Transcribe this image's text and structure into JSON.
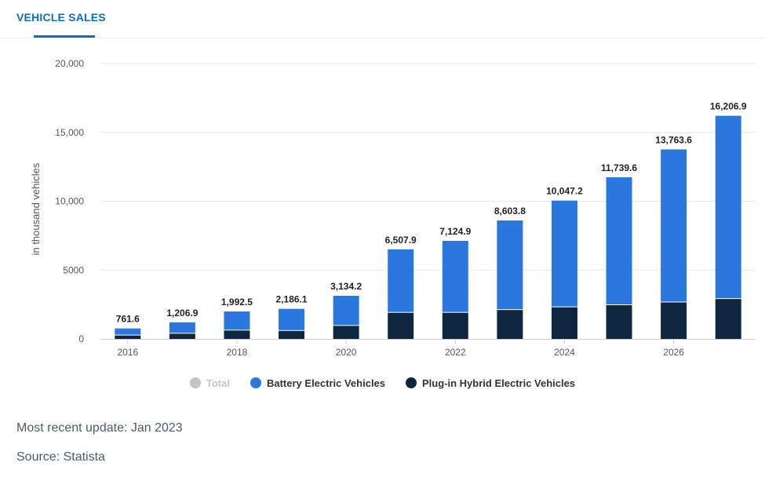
{
  "header": {
    "tab_label": "VEHICLE SALES"
  },
  "colors": {
    "total": "#c4c4c4",
    "bev": "#2a78de",
    "phev": "#0f2640",
    "accent": "#0f6dc0"
  },
  "chart_data": {
    "type": "bar",
    "stacked": true,
    "categories": [
      "2016",
      "2017",
      "2018",
      "2019",
      "2020",
      "2021",
      "2022",
      "2023",
      "2024",
      "2025",
      "2026",
      "2027"
    ],
    "x_tick_labels": [
      "2016",
      "",
      "2018",
      "",
      "2020",
      "",
      "2022",
      "",
      "2024",
      "",
      "2026",
      ""
    ],
    "series": [
      {
        "name": "Total",
        "visible": false,
        "values": [
          761.6,
          1206.9,
          1992.5,
          2186.1,
          3134.2,
          6507.9,
          7124.9,
          8603.8,
          10047.2,
          11739.6,
          13763.6,
          16206.9
        ]
      },
      {
        "name": "Battery Electric Vehicles",
        "visible": true,
        "values": [
          511.6,
          826.9,
          1382.5,
          1606.1,
          2184.2,
          4607.9,
          5224.9,
          6503.8,
          7747.2,
          9289.6,
          11113.6,
          13306.9
        ]
      },
      {
        "name": "Plug-in Hybrid Electric Vehicles",
        "visible": true,
        "values": [
          250,
          380,
          610,
          580,
          950,
          1900,
          1900,
          2100,
          2300,
          2450,
          2650,
          2900
        ]
      }
    ],
    "data_labels": [
      "761.6",
      "1,206.9",
      "1,992.5",
      "2,186.1",
      "3,134.2",
      "6,507.9",
      "7,124.9",
      "8,603.8",
      "10,047.2",
      "11,739.6",
      "13,763.6",
      "16,206.9"
    ],
    "ylabel": "in thousand vehicles",
    "ylim": [
      0,
      20000
    ],
    "y_ticks": [
      0,
      5000,
      10000,
      15000,
      20000
    ],
    "y_tick_labels": [
      "0",
      "5000",
      "10,000",
      "15,000",
      "20,000"
    ],
    "grid": true,
    "legend_position": "bottom"
  },
  "footer": {
    "update_text": "Most recent update: Jan 2023",
    "source_text": "Source: Statista"
  }
}
